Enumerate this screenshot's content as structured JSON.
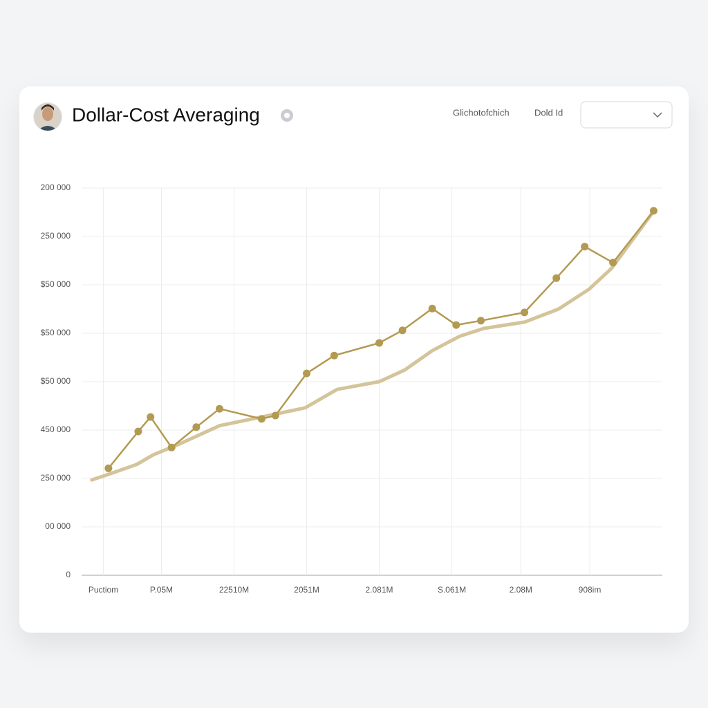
{
  "header": {
    "title": "Dollar-Cost Averaging",
    "link_1": "Glichotofchich",
    "link_2": "Dold Id"
  },
  "chart_data": {
    "type": "line",
    "xlim": [
      0,
      8
    ],
    "xticks": [
      {
        "value": 0.3,
        "label": "Puctiom"
      },
      {
        "value": 1.1,
        "label": "P.05M"
      },
      {
        "value": 2.1,
        "label": "22510M"
      },
      {
        "value": 3.1,
        "label": "2051M"
      },
      {
        "value": 4.1,
        "label": "2.081M"
      },
      {
        "value": 5.1,
        "label": "S.061M"
      },
      {
        "value": 6.05,
        "label": "2.08M"
      },
      {
        "value": 7.0,
        "label": "908im"
      }
    ],
    "ylim": [
      0,
      8
    ],
    "yticks": [
      0,
      {
        "value": 1,
        "label": "00 000"
      },
      {
        "value": 2,
        "label": "250 000"
      },
      {
        "value": 3,
        "label": "450 000"
      },
      {
        "value": 4,
        "label": "$50 000"
      },
      {
        "value": 5,
        "label": "$50 000"
      },
      {
        "value": 6,
        "label": "$50 000"
      },
      {
        "value": 7,
        "label": "250 000"
      },
      {
        "value": 8,
        "label": "200 000"
      }
    ],
    "grid": true,
    "series": [
      {
        "color": "#d4c49a",
        "width": 5,
        "markers": false,
        "x": [
          0.14,
          0.4,
          0.76,
          0.99,
          1.33,
          1.9,
          2.48,
          3.08,
          3.52,
          4.1,
          4.45,
          4.83,
          5.21,
          5.54,
          6.1,
          6.57,
          6.99,
          7.3,
          7.85
        ],
        "values": [
          1.97,
          2.1,
          2.29,
          2.49,
          2.7,
          3.09,
          3.27,
          3.46,
          3.84,
          4.0,
          4.24,
          4.64,
          4.94,
          5.1,
          5.23,
          5.5,
          5.91,
          6.34,
          7.46
        ]
      },
      {
        "color": "#b39a52",
        "width": 2.5,
        "markers": true,
        "x": [
          0.37,
          0.78,
          0.95,
          1.24,
          1.58,
          1.9,
          2.48,
          2.67,
          3.1,
          3.48,
          4.1,
          4.42,
          4.83,
          5.16,
          5.5,
          6.1,
          6.54,
          6.93,
          7.32,
          7.88
        ],
        "values": [
          2.21,
          2.97,
          3.27,
          2.64,
          3.06,
          3.44,
          3.23,
          3.3,
          4.17,
          4.54,
          4.8,
          5.06,
          5.51,
          5.17,
          5.26,
          5.43,
          6.14,
          6.79,
          6.46,
          7.53
        ]
      }
    ]
  }
}
